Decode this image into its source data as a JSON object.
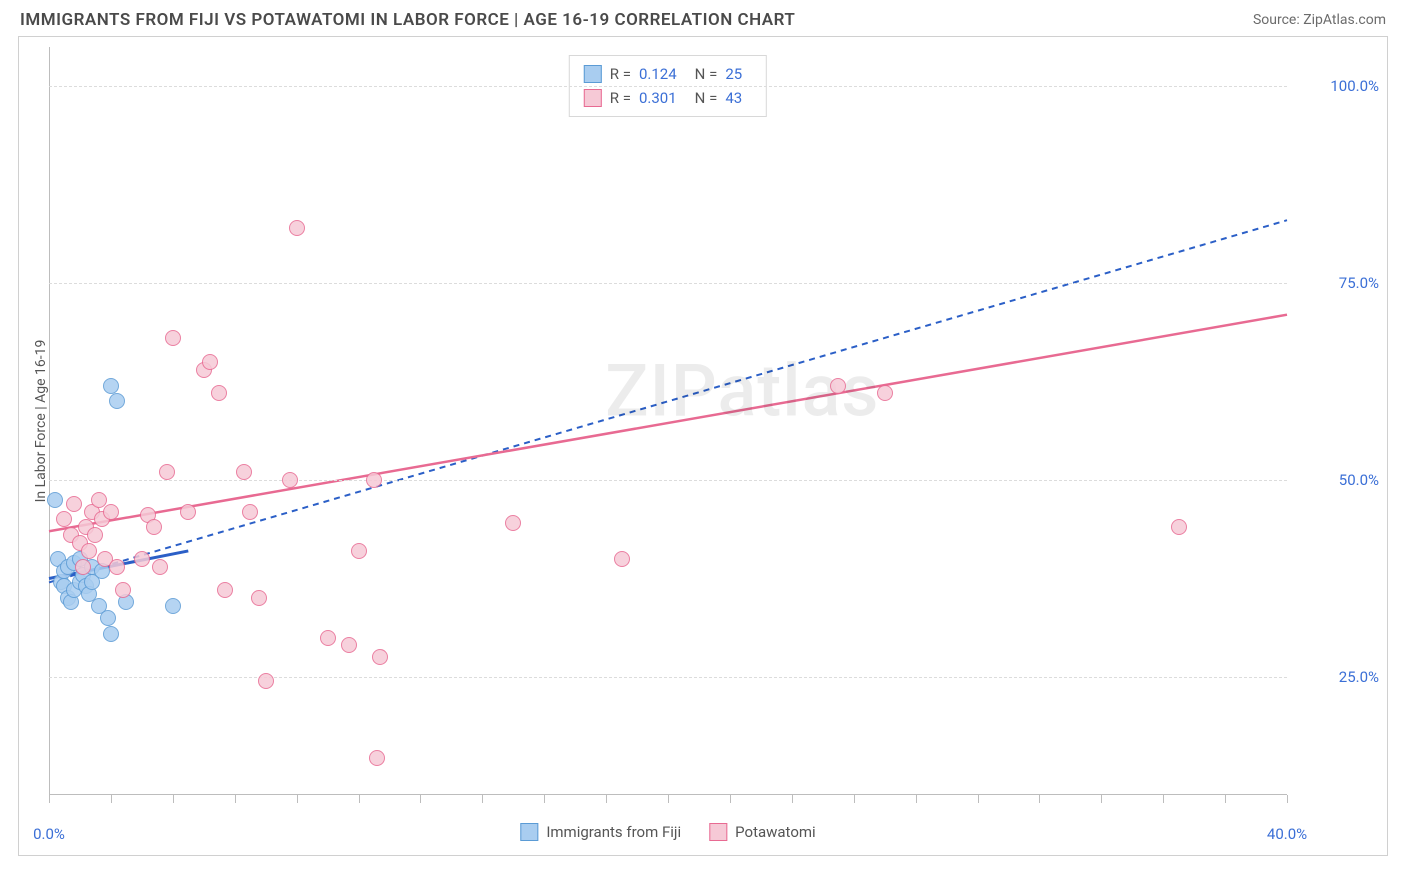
{
  "header": {
    "title": "IMMIGRANTS FROM FIJI VS POTAWATOMI IN LABOR FORCE | AGE 16-19 CORRELATION CHART",
    "source": "Source: ZipAtlas.com"
  },
  "chart": {
    "type": "scatter",
    "ylabel": "In Labor Force | Age 16-19",
    "xlim": [
      0,
      40
    ],
    "ylim": [
      10,
      105
    ],
    "ytick_step": 25,
    "ytick_start": 25,
    "xtick_step": 10,
    "yticks": [
      25,
      50,
      75,
      100
    ],
    "xticks": [
      0,
      10,
      20,
      30,
      40
    ],
    "ytick_labels": [
      "25.0%",
      "50.0%",
      "75.0%",
      "100.0%"
    ],
    "xtick_labels": [
      "0.0%",
      "",
      "",
      "",
      "40.0%"
    ],
    "xtick_minor": [
      0,
      2,
      4,
      6,
      8,
      10,
      12,
      14,
      16,
      18,
      20,
      22,
      24,
      26,
      28,
      30,
      32,
      34,
      36,
      38,
      40
    ],
    "grid_color": "#dcdcdc",
    "background_color": "#ffffff",
    "axis_color": "#bdbdbd",
    "marker_radius": 8,
    "series": [
      {
        "name": "Immigrants from Fiji",
        "fill": "#a9cdf0",
        "stroke": "#5b9bd5",
        "line_color": "#2b5fc7",
        "line_dash": "6 5",
        "line_width": 2,
        "r_value": "0.124",
        "n_value": "25",
        "trend": {
          "x1": 0,
          "y1": 37,
          "x2": 40,
          "y2": 83
        },
        "solid_trend": {
          "x1": 0,
          "y1": 37.5,
          "x2": 4.5,
          "y2": 41
        },
        "points": [
          [
            0.2,
            47.5
          ],
          [
            0.3,
            40
          ],
          [
            0.4,
            37
          ],
          [
            0.5,
            36.5
          ],
          [
            0.5,
            38.5
          ],
          [
            0.6,
            35
          ],
          [
            0.6,
            39
          ],
          [
            0.7,
            34.5
          ],
          [
            0.8,
            36
          ],
          [
            0.8,
            39.5
          ],
          [
            1.0,
            37
          ],
          [
            1.0,
            40
          ],
          [
            1.1,
            38
          ],
          [
            1.2,
            36.5
          ],
          [
            1.3,
            35.5
          ],
          [
            1.4,
            39
          ],
          [
            1.4,
            37
          ],
          [
            1.6,
            34
          ],
          [
            1.7,
            38.5
          ],
          [
            1.9,
            32.5
          ],
          [
            2.0,
            30.5
          ],
          [
            2.5,
            34.5
          ],
          [
            2.0,
            62
          ],
          [
            2.2,
            60
          ],
          [
            4.0,
            34
          ]
        ]
      },
      {
        "name": "Potawatomi",
        "fill": "#f6c9d6",
        "stroke": "#e86a92",
        "line_color": "#e86a92",
        "line_dash": "none",
        "line_width": 2.5,
        "r_value": "0.301",
        "n_value": "43",
        "trend": {
          "x1": 0,
          "y1": 43.5,
          "x2": 40,
          "y2": 71
        },
        "points": [
          [
            0.5,
            45
          ],
          [
            0.7,
            43
          ],
          [
            0.8,
            47
          ],
          [
            1.0,
            42
          ],
          [
            1.1,
            39
          ],
          [
            1.2,
            44
          ],
          [
            1.3,
            41
          ],
          [
            1.4,
            46
          ],
          [
            1.5,
            43
          ],
          [
            1.6,
            47.5
          ],
          [
            1.7,
            45
          ],
          [
            1.8,
            40
          ],
          [
            2.0,
            46
          ],
          [
            2.2,
            39
          ],
          [
            2.4,
            36
          ],
          [
            3.0,
            40
          ],
          [
            3.2,
            45.5
          ],
          [
            3.4,
            44
          ],
          [
            3.6,
            39
          ],
          [
            3.8,
            51
          ],
          [
            4.0,
            68
          ],
          [
            4.5,
            46
          ],
          [
            5.0,
            64
          ],
          [
            5.2,
            65
          ],
          [
            5.5,
            61
          ],
          [
            5.7,
            36
          ],
          [
            6.3,
            51
          ],
          [
            6.5,
            46
          ],
          [
            6.8,
            35
          ],
          [
            7.0,
            24.5
          ],
          [
            7.8,
            50
          ],
          [
            8.0,
            82
          ],
          [
            9.0,
            30
          ],
          [
            9.7,
            29
          ],
          [
            10.0,
            41
          ],
          [
            10.5,
            50
          ],
          [
            10.7,
            27.5
          ],
          [
            10.6,
            14.7
          ],
          [
            15.0,
            44.5
          ],
          [
            18.5,
            40
          ],
          [
            25.5,
            62
          ],
          [
            27.0,
            61
          ],
          [
            36.5,
            44
          ]
        ]
      }
    ],
    "legend_top": {
      "r_label": "R =",
      "n_label": "N ="
    },
    "legend_bottom": [
      {
        "label": "Immigrants from Fiji",
        "fill": "#a9cdf0",
        "stroke": "#5b9bd5"
      },
      {
        "label": "Potawatomi",
        "fill": "#f6c9d6",
        "stroke": "#e86a92"
      }
    ],
    "watermark": "ZIPatlas"
  }
}
